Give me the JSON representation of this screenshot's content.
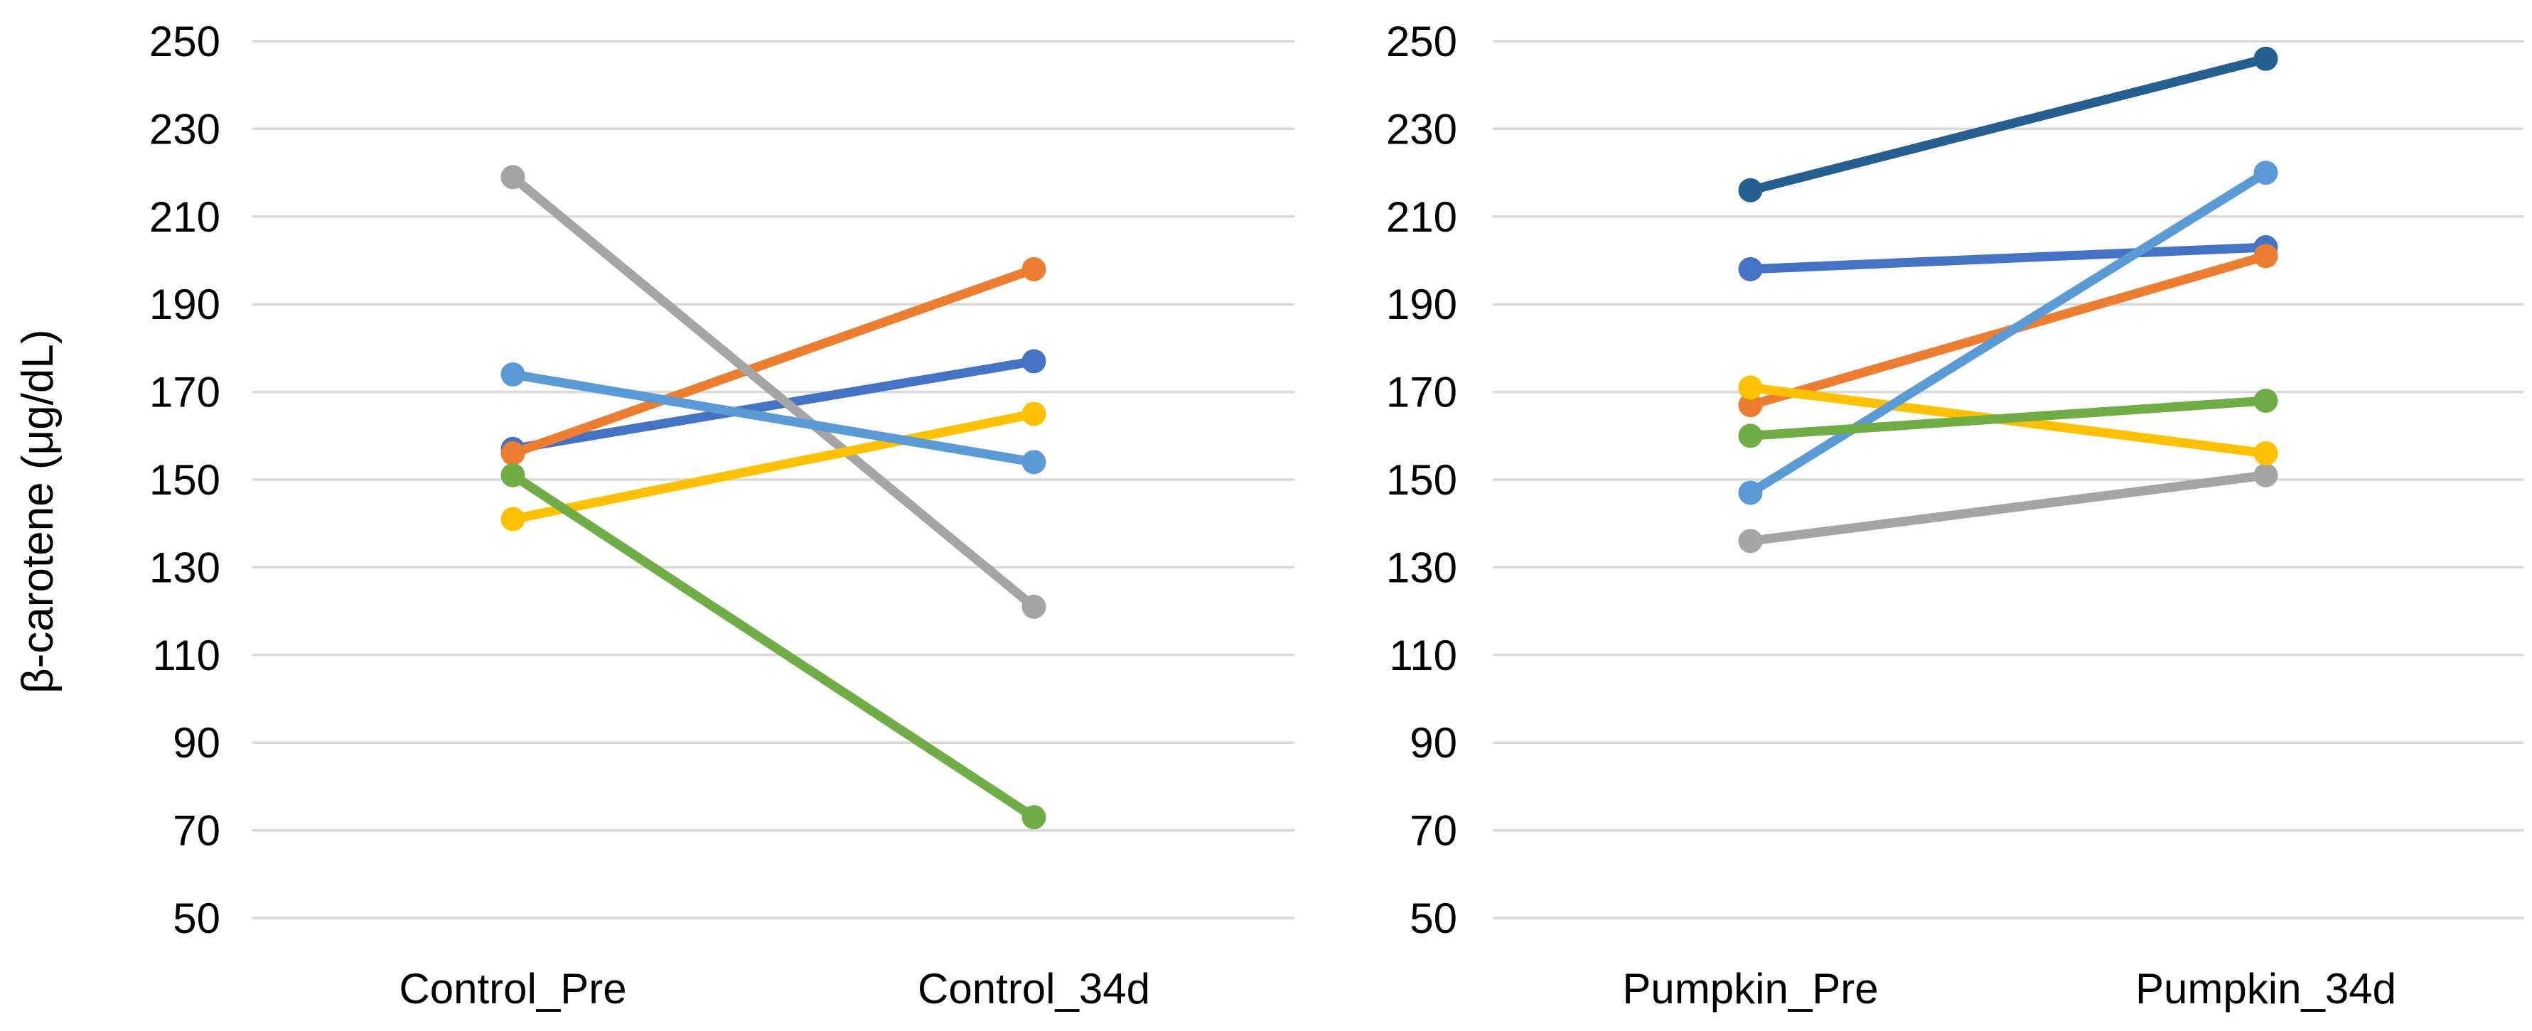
{
  "figure": {
    "ylabel": "β-carotene (μg/dL)",
    "background_color": "#FFFFFF",
    "gridline_color": "#D9D9D9",
    "text_color": "#000000"
  },
  "chart_data": [
    {
      "type": "line",
      "subtype": "paired-slope",
      "categories": [
        "Control_Pre",
        "Control_34d"
      ],
      "ylabel": "β-carotene (μg/dL)",
      "ylim": [
        50,
        250
      ],
      "yticks": [
        250,
        230,
        210,
        190,
        170,
        150,
        130,
        110,
        90,
        70,
        50
      ],
      "grid": true,
      "legend": "none",
      "series": [
        {
          "name": "blue",
          "color": "#4472C4",
          "values": [
            157,
            177
          ]
        },
        {
          "name": "orange",
          "color": "#ED7D31",
          "values": [
            156,
            198
          ]
        },
        {
          "name": "gray",
          "color": "#A5A5A5",
          "values": [
            219,
            121
          ]
        },
        {
          "name": "yellow",
          "color": "#FFC000",
          "values": [
            141,
            165
          ]
        },
        {
          "name": "light-blue",
          "color": "#5B9BD5",
          "values": [
            174,
            154
          ]
        },
        {
          "name": "green",
          "color": "#70AD47",
          "values": [
            151,
            73
          ]
        }
      ]
    },
    {
      "type": "line",
      "subtype": "paired-slope",
      "categories": [
        "Pumpkin_Pre",
        "Pumpkin_34d"
      ],
      "ylabel": "β-carotene (μg/dL)",
      "ylim": [
        50,
        250
      ],
      "yticks": [
        250,
        230,
        210,
        190,
        170,
        150,
        130,
        110,
        90,
        70,
        50
      ],
      "grid": true,
      "legend": "none",
      "series": [
        {
          "name": "blue",
          "color": "#4472C4",
          "values": [
            198,
            203
          ]
        },
        {
          "name": "orange",
          "color": "#ED7D31",
          "values": [
            167,
            201
          ]
        },
        {
          "name": "gray",
          "color": "#A5A5A5",
          "values": [
            136,
            151
          ]
        },
        {
          "name": "yellow",
          "color": "#FFC000",
          "values": [
            171,
            156
          ]
        },
        {
          "name": "light-blue",
          "color": "#5B9BD5",
          "values": [
            147,
            220
          ]
        },
        {
          "name": "green",
          "color": "#70AD47",
          "values": [
            160,
            168
          ]
        },
        {
          "name": "dark-blue",
          "color": "#255E91",
          "values": [
            216,
            246
          ]
        }
      ]
    }
  ]
}
